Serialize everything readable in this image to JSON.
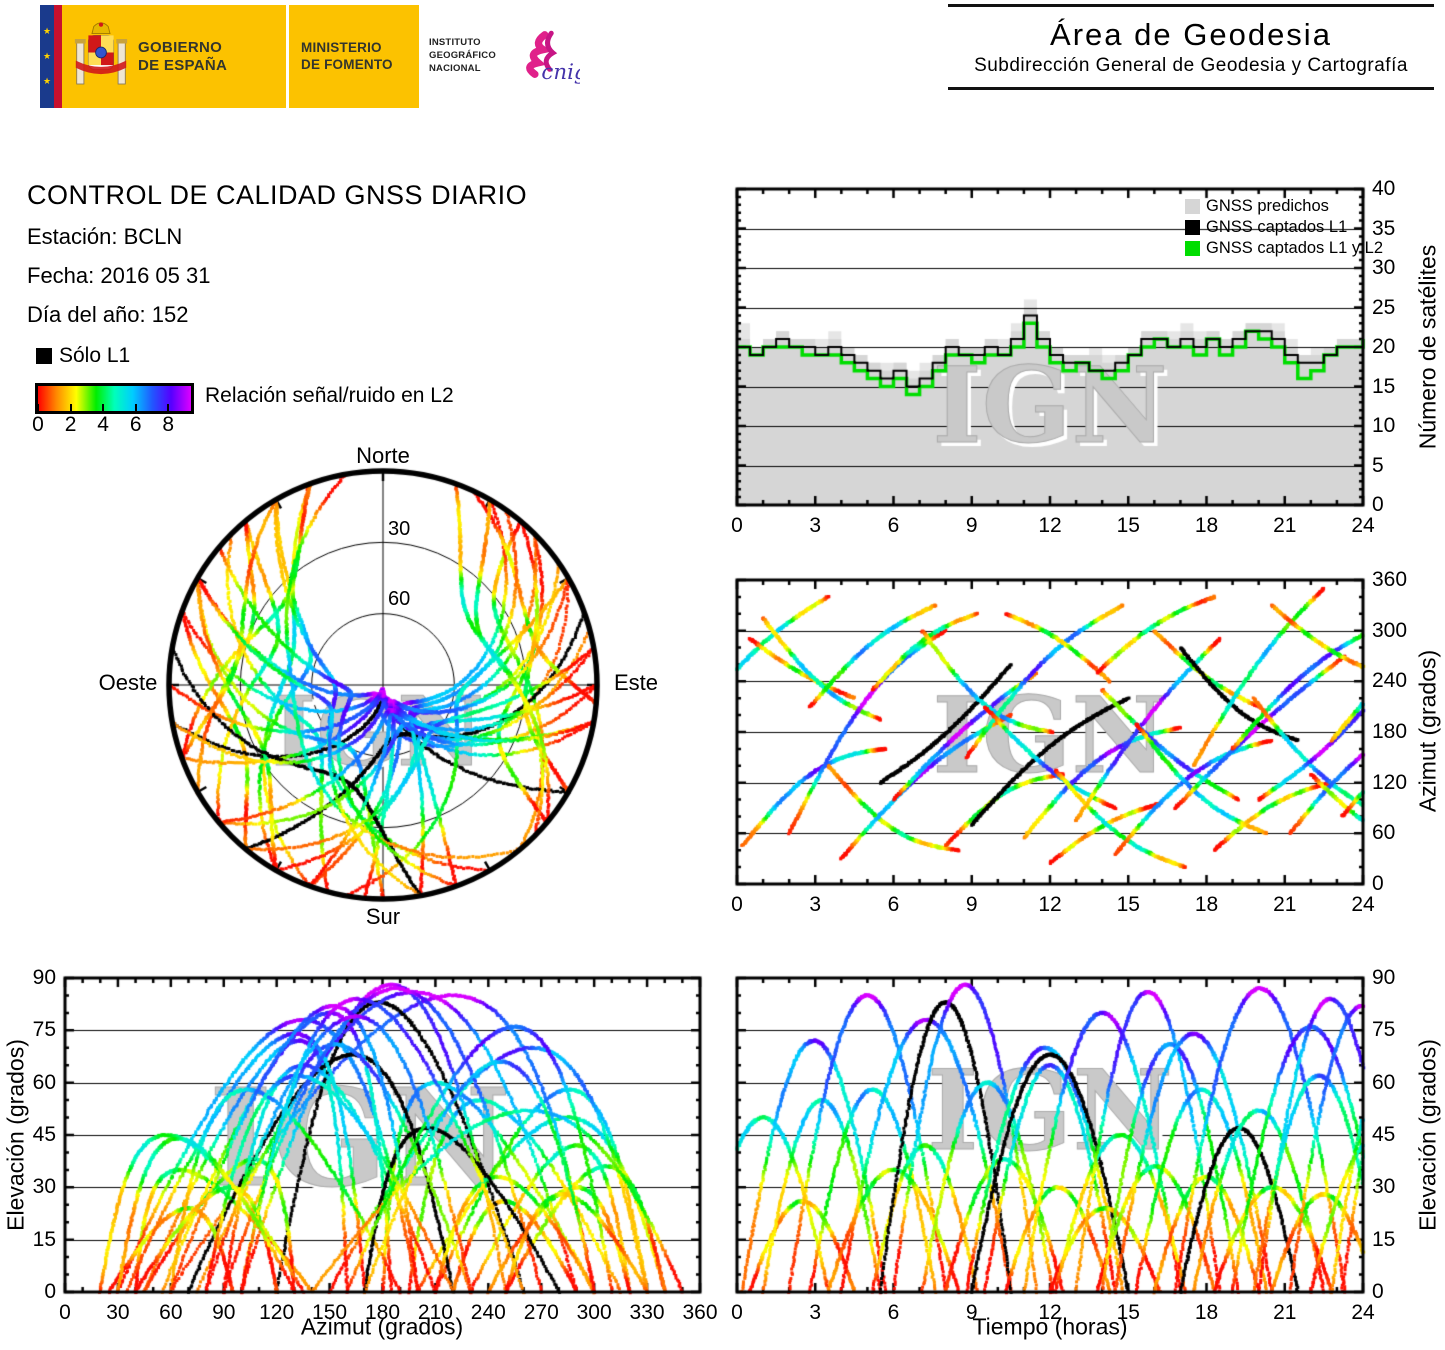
{
  "header": {
    "gobierno_line1": "GOBIERNO",
    "gobierno_line2": "DE ESPAÑA",
    "ministerio_line1": "MINISTERIO",
    "ministerio_line2": "DE FOMENTO",
    "ign_line1": "INSTITUTO",
    "ign_line2": "GEOGRÁFICO",
    "ign_line3": "NACIONAL",
    "cnig_text": "cnig",
    "area_title": "Área de Geodesia",
    "area_subtitle": "Subdirección General de Geodesia y Cartografía"
  },
  "info": {
    "title": "CONTROL DE CALIDAD GNSS DIARIO",
    "station_line": "Estación: BCLN",
    "date_line": "Fecha: 2016 05 31",
    "doy_line": "Día del año: 152"
  },
  "legend": {
    "solo_l1": "Sólo L1",
    "colorbar_label": "Relación señal/ruido en L2",
    "colorbar_ticks": [
      "0",
      "2",
      "4",
      "6",
      "8"
    ],
    "colorbar_range": [
      0,
      9.4
    ],
    "colorbar_colors": [
      "#ff0000",
      "#ff8800",
      "#ffff00",
      "#00ee00",
      "#00ffbb",
      "#00ccff",
      "#2255ff",
      "#5500ff",
      "#dd00ff"
    ]
  },
  "watermark": "IGN",
  "status_colors": {
    "predicted_gray": "#d6d6d6",
    "captured_l1_black": "#000000",
    "captured_l1l2_green": "#00dd00"
  },
  "chart_data": [
    {
      "id": "satellites-count",
      "type": "area",
      "ylabel": "Número de satélites",
      "xlim": [
        0,
        24
      ],
      "ylim": [
        0,
        40
      ],
      "xticks": [
        0,
        3,
        6,
        9,
        12,
        15,
        18,
        21,
        24
      ],
      "yticks": [
        0,
        5,
        10,
        15,
        20,
        25,
        30,
        35,
        40
      ],
      "x_step_hours": 0.5,
      "legend_entries": [
        {
          "label": "GNSS predichos",
          "color": "#d6d6d6"
        },
        {
          "label": "GNSS captados L1",
          "color": "#000000"
        },
        {
          "label": "GNSS captados L1 y L2",
          "color": "#00dd00"
        }
      ],
      "series": [
        {
          "name": "GNSS predichos",
          "style": "step-area",
          "color": "#d6d6d6",
          "values": [
            21,
            20,
            21,
            22,
            21,
            21,
            20,
            21,
            20,
            19,
            18,
            17,
            18,
            16,
            17,
            19,
            21,
            20,
            20,
            21,
            20,
            22,
            25,
            22,
            20,
            19,
            19,
            19,
            18,
            19,
            20,
            22,
            22,
            21,
            22,
            21,
            22,
            21,
            22,
            23,
            23,
            22,
            20,
            19,
            19,
            20,
            21,
            21,
            21
          ]
        },
        {
          "name": "GNSS captados L1",
          "style": "step-line",
          "color": "#000000",
          "values": [
            20,
            19,
            20,
            21,
            20,
            20,
            19,
            20,
            19,
            18,
            17,
            16,
            17,
            15,
            16,
            18,
            20,
            19,
            19,
            20,
            19,
            21,
            24,
            21,
            19,
            18,
            18,
            17,
            17,
            18,
            19,
            21,
            21,
            20,
            21,
            20,
            21,
            20,
            21,
            22,
            22,
            21,
            19,
            18,
            18,
            19,
            20,
            20,
            21
          ]
        },
        {
          "name": "GNSS captados L1 y L2",
          "style": "step-line",
          "color": "#00dd00",
          "values": [
            20,
            19,
            20,
            20,
            20,
            19,
            19,
            19,
            18,
            17,
            16,
            15,
            16,
            14,
            15,
            17,
            19,
            19,
            18,
            19,
            19,
            20,
            23,
            20,
            18,
            17,
            18,
            17,
            16,
            17,
            19,
            20,
            21,
            20,
            20,
            19,
            21,
            19,
            20,
            22,
            21,
            20,
            18,
            16,
            17,
            19,
            20,
            20,
            21
          ]
        }
      ]
    },
    {
      "id": "azimuth-vs-time",
      "type": "scatter",
      "ylabel": "Azimut (grados)",
      "xlim": [
        0,
        24
      ],
      "ylim": [
        0,
        360
      ],
      "xticks": [
        0,
        3,
        6,
        9,
        12,
        15,
        18,
        21,
        24
      ],
      "yticks": [
        0,
        60,
        120,
        180,
        240,
        300,
        360
      ],
      "data_source": "satellite_passes"
    },
    {
      "id": "elevation-vs-azimuth",
      "type": "scatter",
      "xlabel": "Azimut (grados)",
      "ylabel": "Elevación (grados)",
      "xlim": [
        0,
        360
      ],
      "ylim": [
        0,
        90
      ],
      "xticks": [
        0,
        30,
        60,
        90,
        120,
        150,
        180,
        210,
        240,
        270,
        300,
        330,
        360
      ],
      "yticks": [
        0,
        15,
        30,
        45,
        60,
        75,
        90
      ],
      "data_source": "satellite_passes"
    },
    {
      "id": "elevation-vs-time",
      "type": "scatter",
      "xlabel": "Tiempo (horas)",
      "ylabel": "Elevación (grados)",
      "xlim": [
        0,
        24
      ],
      "ylim": [
        0,
        90
      ],
      "xticks": [
        0,
        3,
        6,
        9,
        12,
        15,
        18,
        21,
        24
      ],
      "yticks": [
        0,
        15,
        30,
        45,
        60,
        75,
        90
      ],
      "data_source": "satellite_passes"
    },
    {
      "id": "skyplot",
      "type": "polar-scatter",
      "labels": {
        "north": "Norte",
        "south": "Sur",
        "east": "Este",
        "west": "Oeste"
      },
      "elevation_rings": [
        "30",
        "60"
      ],
      "data_source": "satellite_passes"
    }
  ],
  "satellite_passes": {
    "format": [
      "t0_h",
      "dur_h",
      "az_rise_deg",
      "az_set_deg",
      "el_max_deg",
      "az_curve",
      "l1_only"
    ],
    "passes": [
      [
        -1.5,
        5.0,
        200,
        340,
        50,
        15,
        0
      ],
      [
        0.2,
        5.5,
        45,
        160,
        72,
        30,
        0
      ],
      [
        0.5,
        4.0,
        290,
        220,
        26,
        -6,
        0
      ],
      [
        1.0,
        4.5,
        315,
        195,
        55,
        -20,
        0
      ],
      [
        2.0,
        6.0,
        60,
        300,
        85,
        40,
        0
      ],
      [
        2.8,
        4.8,
        210,
        330,
        58,
        16,
        0
      ],
      [
        3.5,
        5.0,
        140,
        40,
        35,
        -25,
        0
      ],
      [
        4.0,
        6.5,
        30,
        200,
        78,
        20,
        0
      ],
      [
        5.2,
        4.0,
        230,
        320,
        42,
        15,
        0
      ],
      [
        5.5,
        5.0,
        120,
        260,
        83,
        -12,
        1
      ],
      [
        6.0,
        5.5,
        100,
        250,
        88,
        10,
        0
      ],
      [
        7.1,
        5.0,
        300,
        180,
        60,
        -30,
        0
      ],
      [
        8.0,
        4.5,
        45,
        130,
        38,
        20,
        0
      ],
      [
        8.8,
        6.0,
        150,
        330,
        70,
        25,
        0
      ],
      [
        9.0,
        6.0,
        70,
        220,
        68,
        18,
        1
      ],
      [
        9.5,
        5.0,
        210,
        90,
        65,
        -15,
        0
      ],
      [
        10.3,
        4.0,
        320,
        240,
        30,
        10,
        0
      ],
      [
        11.0,
        6.0,
        55,
        185,
        80,
        30,
        0
      ],
      [
        12.0,
        4.2,
        25,
        95,
        24,
        10,
        0
      ],
      [
        12.2,
        5.0,
        135,
        20,
        45,
        -20,
        0
      ],
      [
        13.0,
        5.5,
        75,
        290,
        86,
        15,
        0
      ],
      [
        13.8,
        4.5,
        250,
        340,
        36,
        12,
        0
      ],
      [
        14.0,
        5.2,
        230,
        100,
        71,
        -12,
        0
      ],
      [
        14.5,
        6.0,
        35,
        170,
        74,
        28,
        0
      ],
      [
        15.3,
        5.0,
        190,
        60,
        58,
        -22,
        0
      ],
      [
        16.0,
        4.0,
        300,
        210,
        33,
        -10,
        0
      ],
      [
        16.8,
        6.5,
        90,
        270,
        87,
        8,
        0
      ],
      [
        17.0,
        4.5,
        280,
        170,
        47,
        -20,
        1
      ],
      [
        17.5,
        5.0,
        140,
        350,
        52,
        18,
        0
      ],
      [
        18.3,
        4.5,
        40,
        120,
        30,
        14,
        0
      ],
      [
        19.0,
        6.0,
        160,
        310,
        76,
        20,
        0
      ],
      [
        19.8,
        5.0,
        220,
        80,
        62,
        -18,
        0
      ],
      [
        20.0,
        5.5,
        100,
        260,
        84,
        -14,
        0
      ],
      [
        20.5,
        4.0,
        330,
        250,
        28,
        -8,
        0
      ],
      [
        21.2,
        5.5,
        60,
        200,
        82,
        22,
        0
      ],
      [
        22.0,
        5.0,
        130,
        30,
        44,
        -16,
        0
      ],
      [
        22.8,
        4.5,
        170,
        300,
        66,
        12,
        0
      ],
      [
        23.2,
        5.0,
        80,
        230,
        79,
        10,
        0
      ]
    ]
  }
}
